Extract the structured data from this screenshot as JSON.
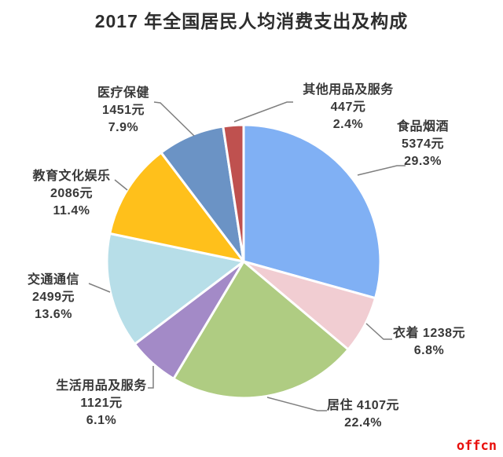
{
  "title": "2017 年全国居民人均消费支出及构成",
  "watermark": "offcn",
  "chart_data": {
    "type": "pie",
    "title": "2017 年全国居民人均消费支出及构成",
    "unit": "元",
    "start_angle_deg": 0,
    "direction": "clockwise",
    "legend": "none (direct callout labels with leader lines)",
    "slices": [
      {
        "label": "食品烟酒",
        "value": "5374元",
        "pct": "29.3%",
        "amount": 5374,
        "percent": 29.3,
        "color": "#80B0F4"
      },
      {
        "label": "衣着",
        "value": "1238元",
        "pct": "6.8%",
        "amount": 1238,
        "percent": 6.8,
        "color": "#F1CDD2"
      },
      {
        "label": "居住",
        "value": "4107元",
        "pct": "22.4%",
        "amount": 4107,
        "percent": 22.4,
        "color": "#AFCC82"
      },
      {
        "label": "生活用品及服务",
        "value": "1121元",
        "pct": "6.1%",
        "amount": 1121,
        "percent": 6.1,
        "color": "#A38AC7"
      },
      {
        "label": "交通通信",
        "value": "2499元",
        "pct": "13.6%",
        "amount": 2499,
        "percent": 13.6,
        "color": "#B7DEE8"
      },
      {
        "label": "教育文化娱乐",
        "value": "2086元",
        "pct": "11.4%",
        "amount": 2086,
        "percent": 11.4,
        "color": "#FFC01B"
      },
      {
        "label": "医疗保健",
        "value": "1451元",
        "pct": "7.9%",
        "amount": 1451,
        "percent": 7.9,
        "color": "#6B93C5"
      },
      {
        "label": "其他用品及服务",
        "value": "447元",
        "pct": "2.4%",
        "amount": 447,
        "percent": 2.4,
        "color": "#BF514F"
      }
    ],
    "colors": {
      "leader_line": "#7f7f7f",
      "label_text": "#383838",
      "title_text": "#2d2d2d",
      "watermark_red": "#e8100c",
      "slice_border": "#ffffff"
    }
  }
}
